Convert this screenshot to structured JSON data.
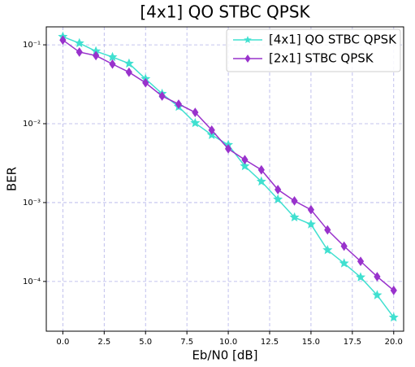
{
  "chart_data": {
    "type": "line",
    "title": "[4x1] QO STBC QPSK",
    "x_label": "Eb/N0 [dB]",
    "y_label": "BER",
    "x": [
      0,
      1,
      2,
      3,
      4,
      5,
      6,
      7,
      8,
      9,
      10,
      11,
      12,
      13,
      14,
      15,
      16,
      17,
      18,
      19,
      20
    ],
    "series": [
      {
        "name": "[4x1] QO STBC QPSK",
        "color": "#40e0d0",
        "marker": "star",
        "values": [
          0.127,
          0.105,
          0.083,
          0.07,
          0.058,
          0.037,
          0.024,
          0.0164,
          0.0102,
          0.0072,
          0.0054,
          0.0029,
          0.00185,
          0.0011,
          0.00065,
          0.00053,
          0.00025,
          0.00017,
          0.000113,
          6.7e-05,
          3.5e-05
        ]
      },
      {
        "name": "[2x1] STBC QPSK",
        "color": "#9932cc",
        "marker": "diamond",
        "values": [
          0.115,
          0.081,
          0.073,
          0.057,
          0.045,
          0.033,
          0.0224,
          0.0177,
          0.0139,
          0.0083,
          0.0048,
          0.0035,
          0.0026,
          0.00146,
          0.00105,
          0.00081,
          0.00045,
          0.00028,
          0.00018,
          0.000115,
          7.7e-05
        ]
      }
    ],
    "xlim": [
      -1.0,
      20.6
    ],
    "ylim": [
      2.34e-05,
      0.169
    ],
    "y_scale": "log",
    "xticks": [
      {
        "value": 0,
        "label": "0.0"
      },
      2.5,
      {
        "value": 5,
        "label": "5.0"
      },
      7.5,
      {
        "value": 10,
        "label": "10.0"
      },
      12.5,
      {
        "value": 15,
        "label": "15.0"
      },
      17.5,
      {
        "value": 20,
        "label": "20.0"
      }
    ],
    "yticks": [
      {
        "value": 0.0001,
        "label": "10⁻⁴"
      },
      {
        "value": 0.001,
        "label": "10⁻³"
      },
      {
        "value": 0.01,
        "label": "10⁻²"
      },
      {
        "value": 0.1,
        "label": "10⁻¹"
      }
    ],
    "grid": true,
    "legend": "upper right"
  }
}
